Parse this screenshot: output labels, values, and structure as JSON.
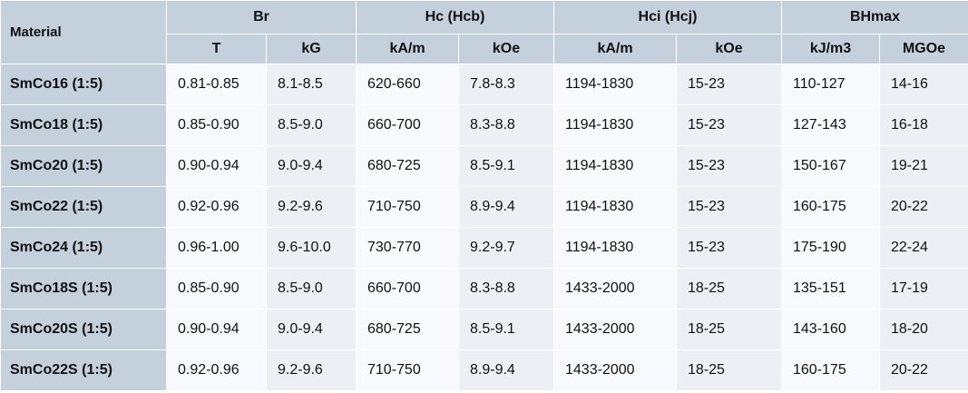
{
  "header": {
    "material": "Material",
    "groups": [
      "Br",
      "Hc (Hcb)",
      "Hci (Hcj)",
      "BHmax"
    ],
    "units": [
      "T",
      "kG",
      "kA/m",
      "kOe",
      "kA/m",
      "kOe",
      "kJ/m3",
      "MGOe"
    ]
  },
  "rows": [
    {
      "material": "SmCo16 (1:5)",
      "values": [
        "0.81-0.85",
        "8.1-8.5",
        "620-660",
        "7.8-8.3",
        "1194-1830",
        "15-23",
        "110-127",
        "14-16"
      ]
    },
    {
      "material": "SmCo18 (1:5)",
      "values": [
        "0.85-0.90",
        "8.5-9.0",
        "660-700",
        "8.3-8.8",
        "1194-1830",
        "15-23",
        "127-143",
        "16-18"
      ]
    },
    {
      "material": "SmCo20 (1:5)",
      "values": [
        "0.90-0.94",
        "9.0-9.4",
        "680-725",
        "8.5-9.1",
        "1194-1830",
        "15-23",
        "150-167",
        "19-21"
      ]
    },
    {
      "material": "SmCo22 (1:5)",
      "values": [
        "0.92-0.96",
        "9.2-9.6",
        "710-750",
        "8.9-9.4",
        "1194-1830",
        "15-23",
        "160-175",
        "20-22"
      ]
    },
    {
      "material": "SmCo24 (1:5)",
      "values": [
        "0.96-1.00",
        "9.6-10.0",
        "730-770",
        "9.2-9.7",
        "1194-1830",
        "15-23",
        "175-190",
        "22-24"
      ]
    },
    {
      "material": "SmCo18S (1:5)",
      "values": [
        "0.85-0.90",
        "8.5-9.0",
        "660-700",
        "8.3-8.8",
        "1433-2000",
        "18-25",
        "135-151",
        "17-19"
      ]
    },
    {
      "material": "SmCo20S (1:5)",
      "values": [
        "0.90-0.94",
        "9.0-9.4",
        "680-725",
        "8.5-9.1",
        "1433-2000",
        "18-25",
        "143-160",
        "18-20"
      ]
    },
    {
      "material": "SmCo22S (1:5)",
      "values": [
        "0.92-0.96",
        "9.2-9.6",
        "710-750",
        "8.9-9.4",
        "1433-2000",
        "18-25",
        "160-175",
        "20-22"
      ]
    }
  ]
}
